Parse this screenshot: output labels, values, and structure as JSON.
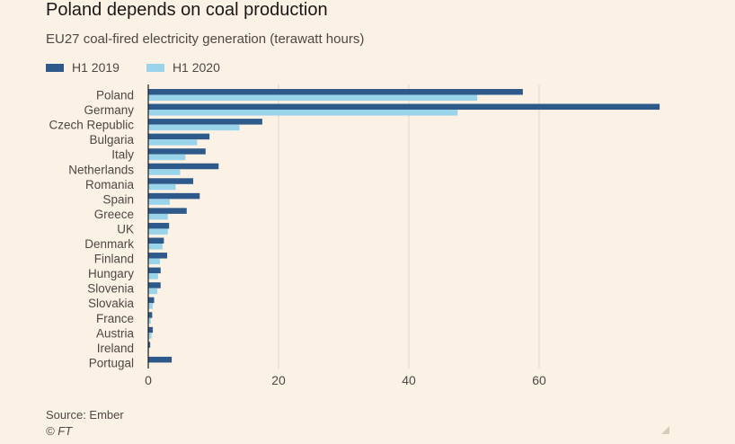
{
  "header": {
    "title": "Poland depends on coal production",
    "subtitle": "EU27 coal-fired electricity generation (terawatt hours)"
  },
  "footer": {
    "source": "Source: Ember",
    "credit": "© FT"
  },
  "colors": {
    "h1_2019": "#2d5a8a",
    "h1_2020": "#9ad4ea",
    "background": "#fcf1e5",
    "gridline": "#e0d6cc",
    "text": "#4d4845"
  },
  "chart_data": {
    "type": "bar",
    "orientation": "horizontal",
    "title": "Poland depends on coal production",
    "subtitle": "EU27 coal-fired electricity generation (terawatt hours)",
    "xlabel": "",
    "ylabel": "",
    "xlim": [
      0,
      80
    ],
    "xticks": [
      0,
      20,
      40,
      60
    ],
    "grid": "vertical",
    "legend": "top-left",
    "categories": [
      "Poland",
      "Germany",
      "Czech Republic",
      "Bulgaria",
      "Italy",
      "Netherlands",
      "Romania",
      "Spain",
      "Greece",
      "UK",
      "Denmark",
      "Finland",
      "Hungary",
      "Slovenia",
      "Slovakia",
      "France",
      "Austria",
      "Ireland",
      "Portugal"
    ],
    "series": [
      {
        "name": "H1 2019",
        "color": "#2d5a8a",
        "values": [
          57.5,
          78.5,
          17.5,
          9.4,
          8.8,
          10.8,
          6.9,
          7.9,
          5.9,
          3.2,
          2.4,
          2.9,
          1.9,
          1.9,
          0.9,
          0.6,
          0.7,
          0.3,
          3.6
        ]
      },
      {
        "name": "H1 2020",
        "color": "#9ad4ea",
        "values": [
          50.5,
          47.5,
          14.0,
          7.5,
          5.7,
          4.9,
          4.2,
          3.3,
          3.0,
          3.0,
          2.2,
          1.8,
          1.5,
          1.4,
          0.7,
          0.4,
          0.5,
          0.1,
          0.0
        ]
      }
    ]
  }
}
